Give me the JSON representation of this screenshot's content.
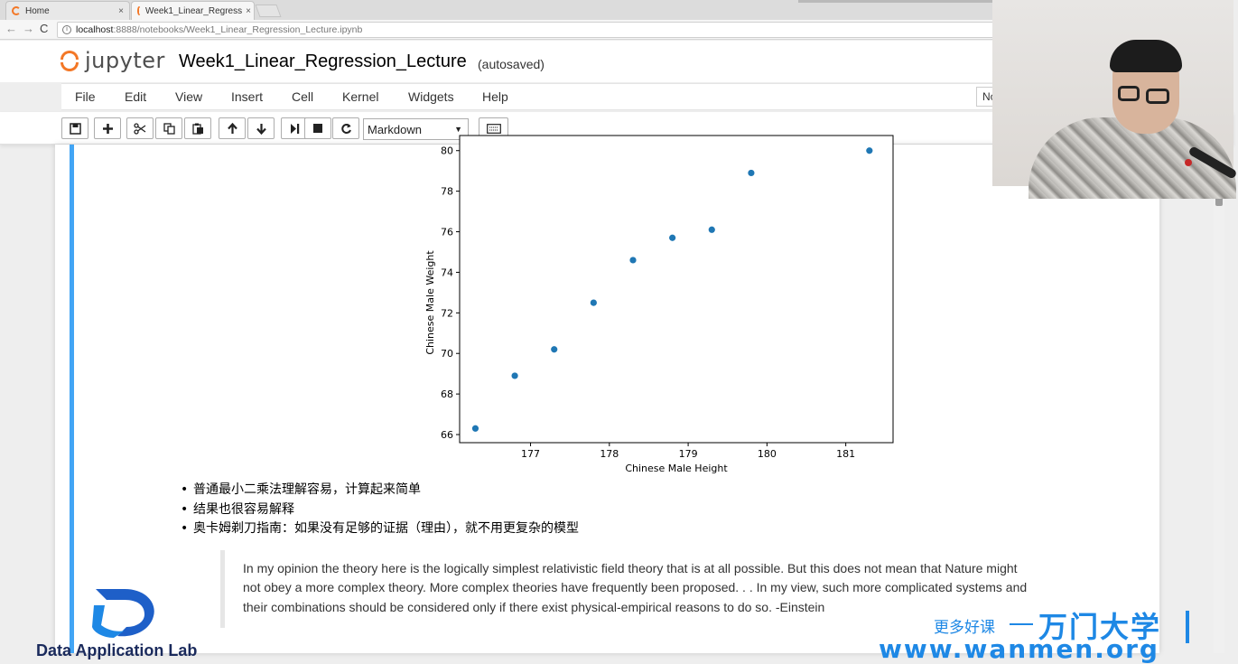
{
  "browser": {
    "tabs": [
      {
        "title": "Home",
        "close": "×"
      },
      {
        "title": "Week1_Linear_Regress",
        "close": "×"
      }
    ],
    "url_host": "localhost",
    "url_path": ":8888/notebooks/Week1_Linear_Regression_Lecture.ipynb"
  },
  "jupyter": {
    "logo_text": "jupyter",
    "notebook_name": "Week1_Linear_Regression_Lecture",
    "save_status": "(autosaved)",
    "kernel_indicator": "No",
    "menu": [
      "File",
      "Edit",
      "View",
      "Insert",
      "Cell",
      "Kernel",
      "Widgets",
      "Help"
    ],
    "cell_type": "Markdown"
  },
  "chart_data": {
    "type": "scatter",
    "xlabel": "Chinese Male Height",
    "ylabel": "Chinese Male Weight",
    "xlim": [
      176.1,
      181.6
    ],
    "ylim": [
      65.6,
      80.3
    ],
    "x_ticks": [
      177,
      178,
      179,
      180,
      181
    ],
    "y_ticks": [
      66,
      68,
      70,
      72,
      74,
      76,
      78,
      80
    ],
    "points": [
      {
        "x": 176.3,
        "y": 66.3
      },
      {
        "x": 176.8,
        "y": 68.9
      },
      {
        "x": 177.3,
        "y": 70.2
      },
      {
        "x": 177.8,
        "y": 72.5
      },
      {
        "x": 178.3,
        "y": 74.6
      },
      {
        "x": 178.8,
        "y": 75.7
      },
      {
        "x": 179.3,
        "y": 76.1
      },
      {
        "x": 179.8,
        "y": 78.9
      },
      {
        "x": 181.3,
        "y": 80.0
      }
    ],
    "color": "#1f77b4"
  },
  "bullets": [
    "普通最小二乘法理解容易，计算起来简单",
    "结果也很容易解释",
    "奥卡姆剃刀指南：如果没有足够的证据（理由），就不用更复杂的模型"
  ],
  "quote": {
    "line1": "In my opinion the theory here is the logically simplest relativistic field theory that is at all possible. But this does not mean that Nature might",
    "line2": "not obey a more complex theory. More complex theories have frequently been proposed. . . In my view, such more complicated systems and",
    "line3": "their combinations should be considered only if there exist physical-empirical reasons to do so. -Einstein"
  },
  "watermark": {
    "lab_text": "Data Application Lab",
    "cn_text": "更多好课",
    "brand": "万门大学",
    "url": "www.wanmen.org"
  }
}
